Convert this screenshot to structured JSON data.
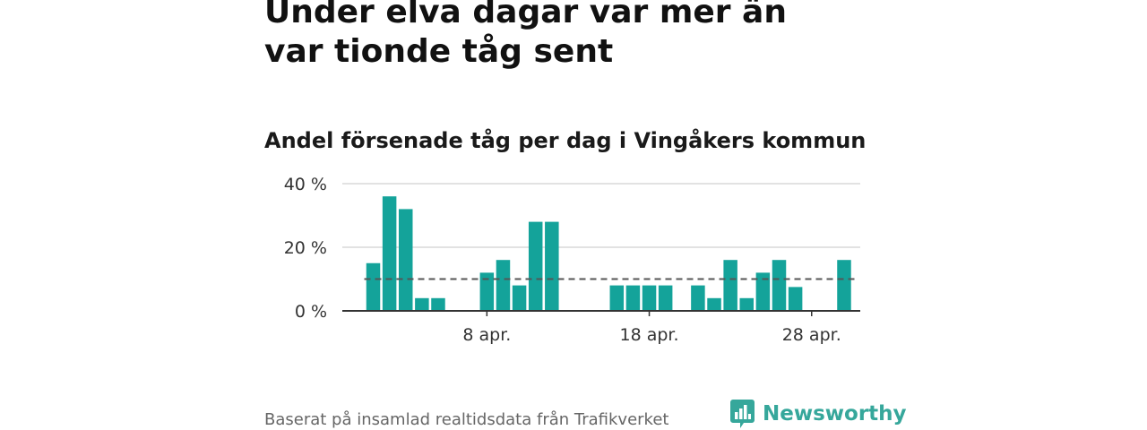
{
  "header": {
    "title": "Under elva dagar var mer än var tionde tåg sent",
    "subtitle": "Andel försenade tåg per dag i Vingåkers kommun"
  },
  "footer": {
    "source": "Baserat på insamlad realtidsdata från Trafikverket",
    "brand": "Newsworthy",
    "brand_icon": "bar-chart-logo-icon"
  },
  "colors": {
    "bar": "#14A39A",
    "reference_line": "#555555",
    "grid": "#d9d9d9",
    "axis": "#333333",
    "brand": "#36A79B"
  },
  "chart_data": {
    "type": "bar",
    "x_unit": "day of April",
    "x": [
      1,
      2,
      3,
      4,
      5,
      6,
      7,
      8,
      9,
      10,
      11,
      12,
      13,
      14,
      15,
      16,
      17,
      18,
      19,
      20,
      21,
      22,
      23,
      24,
      25,
      26,
      27,
      28,
      29,
      30
    ],
    "values": [
      15,
      36,
      32,
      4,
      4,
      0,
      0,
      12,
      16,
      8,
      28,
      28,
      0,
      0,
      0,
      8,
      8,
      8,
      8,
      0,
      8,
      4,
      16,
      4,
      12,
      16,
      7.5,
      0,
      0,
      16
    ],
    "reference_line": {
      "value": 10,
      "style": "dashed"
    },
    "ylim": [
      0,
      40
    ],
    "yticks": [
      0,
      20,
      40
    ],
    "ytick_labels": [
      "0 %",
      "20 %",
      "40 %"
    ],
    "xticks": [
      8,
      18,
      28
    ],
    "xtick_labels": [
      "8 apr.",
      "18 apr.",
      "28 apr."
    ],
    "grid": "horizontal",
    "legend": "none"
  }
}
